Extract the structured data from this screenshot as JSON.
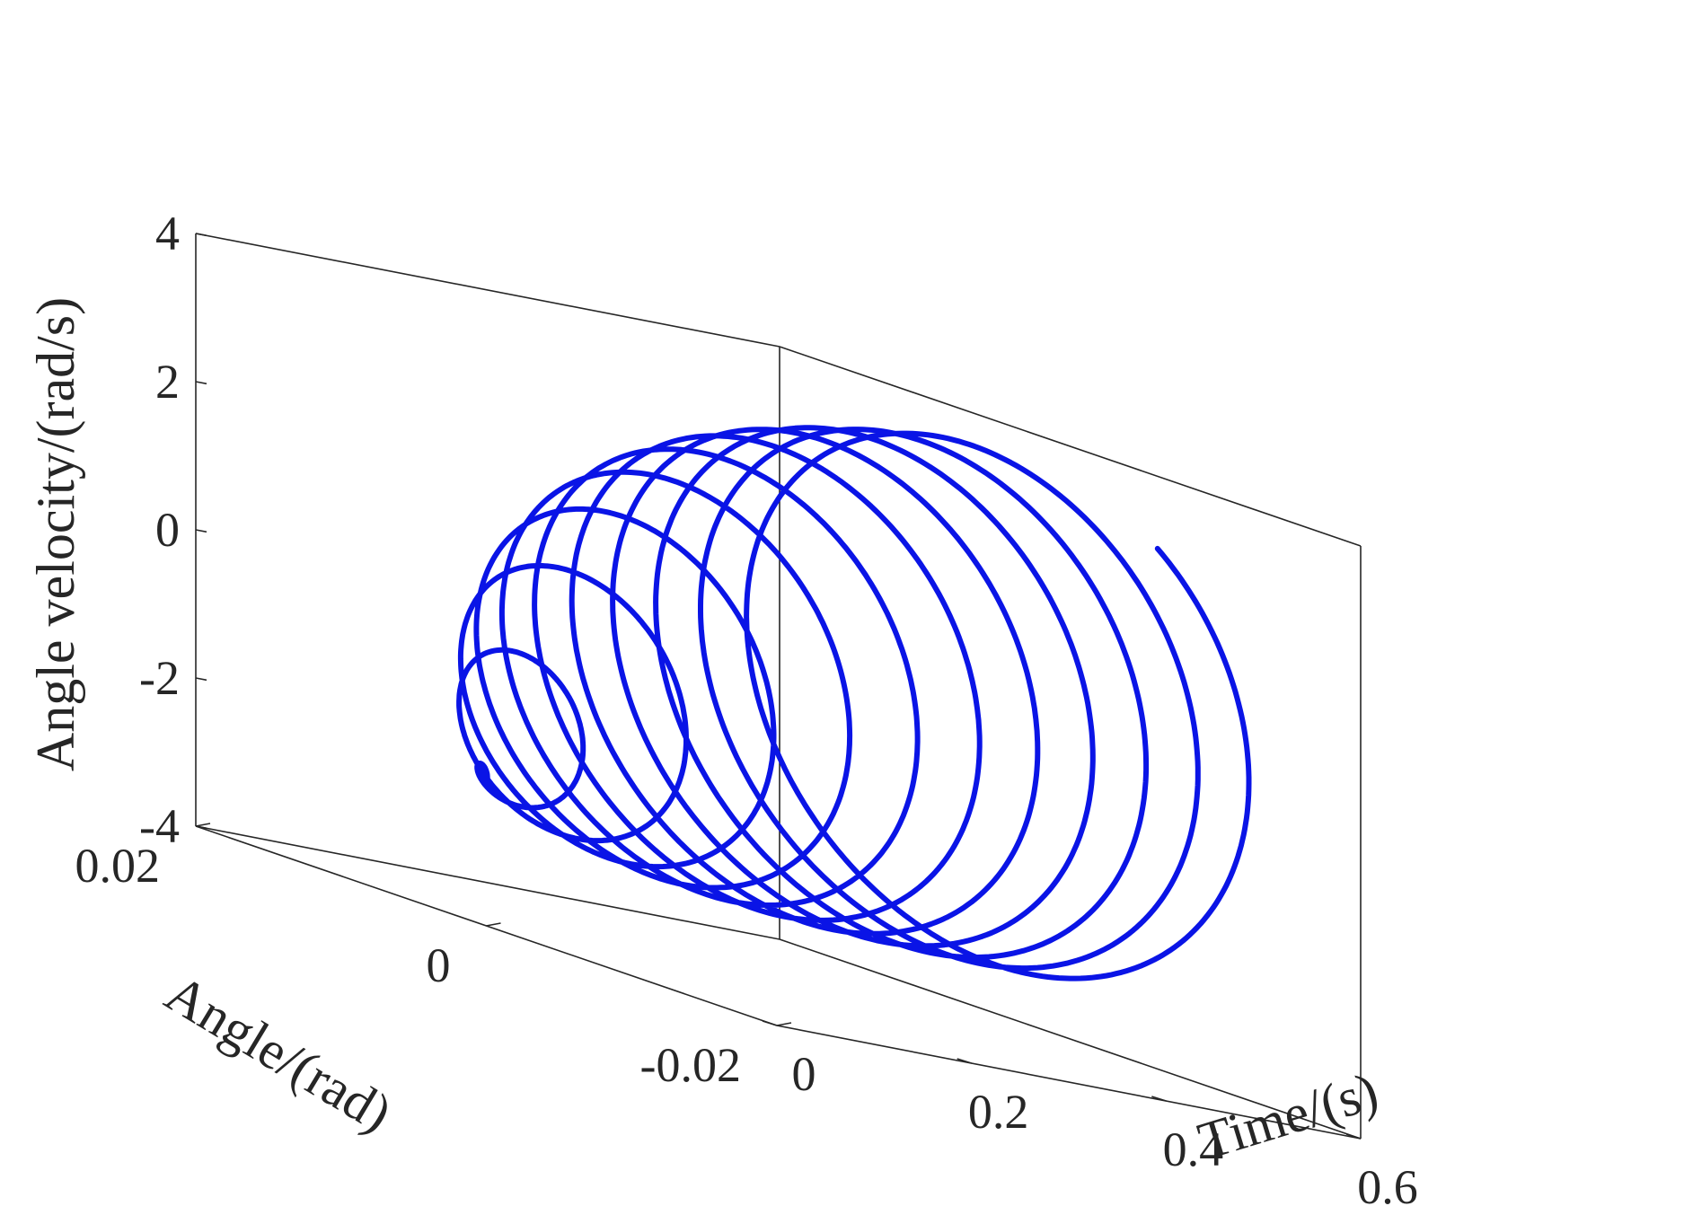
{
  "chart_data": {
    "type": "line3d",
    "title": "",
    "xlabel": "Time/(s)",
    "ylabel": "Angle/(rad)",
    "zlabel": "Angle velocity/(rad/s)",
    "xlim": [
      0,
      0.6
    ],
    "ylim": [
      -0.02,
      0.02
    ],
    "zlim": [
      -4,
      4
    ],
    "xticks": [
      0,
      0.2,
      0.4,
      0.6
    ],
    "xtick_labels": [
      "0",
      "0.2",
      "0.4",
      "0.6"
    ],
    "yticks": [
      0.02,
      0,
      -0.02
    ],
    "ytick_labels": [
      "0.02",
      "0",
      "-0.02"
    ],
    "zticks": [
      4,
      2,
      0,
      -2,
      -4
    ],
    "ztick_labels": [
      "4",
      "2",
      "0",
      "-2",
      "-4"
    ],
    "grid": false,
    "box": true,
    "series": [
      {
        "color": "#0a14e6",
        "model": {
          "t_start": 0.0,
          "t_end": 0.545,
          "frequency_hz": 20,
          "angle_amplitude_final": 0.0165,
          "velocity_amplitude_final": 3.5,
          "velocity_offset_start": -2.1,
          "velocity_offset_final": 0.3,
          "growth_time_constant": 0.14
        }
      }
    ]
  }
}
